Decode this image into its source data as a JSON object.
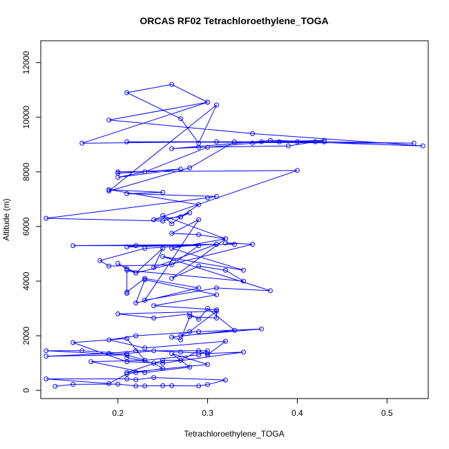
{
  "chart_data": {
    "type": "line",
    "title": "ORCAS RF02 Tetrachloroethylene_TOGA",
    "xlabel": "Tetrachloroethylene_TOGA",
    "ylabel": "Altitude (m)",
    "xlim": [
      0.114,
      0.546
    ],
    "ylim": [
      -300,
      12800
    ],
    "xticks": [
      0.2,
      0.3,
      0.4,
      0.5
    ],
    "xtick_labels": [
      "0.2",
      "0.3",
      "0.4",
      "0.5"
    ],
    "yticks": [
      0,
      2000,
      4000,
      6000,
      8000,
      10000,
      12000
    ],
    "ytick_labels": [
      "0",
      "2000",
      "4000",
      "6000",
      "8000",
      "10000",
      "12000"
    ],
    "grid": false,
    "marker": "open-circle",
    "color": "#0000ff",
    "series": [
      {
        "points": [
          [
            0.13,
            150
          ],
          [
            0.15,
            220
          ],
          [
            0.2,
            230
          ],
          [
            0.22,
            160
          ],
          [
            0.23,
            160
          ],
          [
            0.25,
            170
          ],
          [
            0.26,
            170
          ],
          [
            0.29,
            160
          ],
          [
            0.3,
            210
          ],
          [
            0.32,
            380
          ],
          [
            0.24,
            470
          ],
          [
            0.22,
            390
          ],
          [
            0.21,
            420
          ],
          [
            0.12,
            420
          ],
          [
            0.19,
            250
          ],
          [
            0.21,
            600
          ],
          [
            0.22,
            650
          ],
          [
            0.25,
            800
          ],
          [
            0.24,
            1000
          ],
          [
            0.21,
            1200
          ],
          [
            0.21,
            1300
          ],
          [
            0.12,
            1250
          ],
          [
            0.19,
            1350
          ],
          [
            0.22,
            1450
          ],
          [
            0.3,
            1450
          ],
          [
            0.29,
            1300
          ],
          [
            0.23,
            1100
          ],
          [
            0.21,
            1300
          ],
          [
            0.12,
            1450
          ],
          [
            0.16,
            1450
          ],
          [
            0.21,
            1350
          ],
          [
            0.24,
            1450
          ],
          [
            0.27,
            1400
          ],
          [
            0.3,
            1350
          ],
          [
            0.34,
            1400
          ],
          [
            0.25,
            1000
          ],
          [
            0.21,
            1050
          ],
          [
            0.15,
            1750
          ],
          [
            0.21,
            1900
          ],
          [
            0.23,
            1100
          ],
          [
            0.17,
            1050
          ],
          [
            0.23,
            650
          ],
          [
            0.28,
            850
          ],
          [
            0.26,
            1350
          ],
          [
            0.3,
            950
          ],
          [
            0.21,
            650
          ],
          [
            0.25,
            1100
          ],
          [
            0.27,
            1100
          ],
          [
            0.29,
            1450
          ],
          [
            0.3,
            1300
          ],
          [
            0.32,
            1800
          ],
          [
            0.23,
            1550
          ],
          [
            0.19,
            1850
          ],
          [
            0.22,
            2000
          ],
          [
            0.29,
            2150
          ],
          [
            0.36,
            2250
          ],
          [
            0.27,
            2000
          ],
          [
            0.28,
            2150
          ],
          [
            0.31,
            2900
          ],
          [
            0.2,
            2800
          ],
          [
            0.24,
            2650
          ],
          [
            0.28,
            2800
          ],
          [
            0.29,
            2600
          ],
          [
            0.3,
            3000
          ],
          [
            0.33,
            2200
          ],
          [
            0.26,
            1950
          ],
          [
            0.27,
            1850
          ],
          [
            0.28,
            2700
          ],
          [
            0.31,
            2650
          ],
          [
            0.31,
            2950
          ],
          [
            0.24,
            3100
          ],
          [
            0.31,
            3500
          ],
          [
            0.23,
            4050
          ],
          [
            0.22,
            3200
          ],
          [
            0.29,
            3750
          ],
          [
            0.23,
            4100
          ],
          [
            0.21,
            3600
          ],
          [
            0.21,
            3550
          ],
          [
            0.21,
            4450
          ],
          [
            0.2,
            4650
          ],
          [
            0.22,
            4300
          ],
          [
            0.25,
            5200
          ],
          [
            0.24,
            4500
          ],
          [
            0.31,
            5350
          ],
          [
            0.21,
            5250
          ],
          [
            0.22,
            5300
          ],
          [
            0.31,
            5350
          ],
          [
            0.23,
            5200
          ],
          [
            0.18,
            4750
          ],
          [
            0.19,
            4550
          ],
          [
            0.26,
            4600
          ],
          [
            0.29,
            5300
          ],
          [
            0.15,
            5300
          ],
          [
            0.33,
            5350
          ],
          [
            0.32,
            5400
          ],
          [
            0.35,
            5350
          ],
          [
            0.22,
            4300
          ],
          [
            0.21,
            4400
          ],
          [
            0.34,
            4000
          ],
          [
            0.32,
            4400
          ],
          [
            0.29,
            4550
          ],
          [
            0.26,
            4100
          ],
          [
            0.32,
            5550
          ],
          [
            0.26,
            5200
          ],
          [
            0.34,
            4400
          ],
          [
            0.25,
            4900
          ],
          [
            0.37,
            3650
          ],
          [
            0.31,
            3750
          ],
          [
            0.23,
            3300
          ],
          [
            0.29,
            6250
          ],
          [
            0.26,
            5750
          ],
          [
            0.29,
            5700
          ],
          [
            0.32,
            5550
          ],
          [
            0.25,
            6400
          ],
          [
            0.26,
            6100
          ],
          [
            0.27,
            6350
          ],
          [
            0.28,
            6500
          ],
          [
            0.25,
            6200
          ],
          [
            0.12,
            6300
          ],
          [
            0.3,
            7050
          ],
          [
            0.31,
            7100
          ],
          [
            0.21,
            7200
          ],
          [
            0.25,
            7250
          ],
          [
            0.19,
            7350
          ],
          [
            0.29,
            6800
          ],
          [
            0.27,
            6350
          ],
          [
            0.24,
            6250
          ],
          [
            0.4,
            8050
          ],
          [
            0.2,
            8000
          ],
          [
            0.2,
            7950
          ],
          [
            0.27,
            8100
          ],
          [
            0.2,
            7800
          ],
          [
            0.23,
            8000
          ],
          [
            0.3,
            8900
          ],
          [
            0.35,
            9050
          ],
          [
            0.38,
            9100
          ],
          [
            0.42,
            9100
          ],
          [
            0.36,
            9100
          ],
          [
            0.43,
            9150
          ],
          [
            0.39,
            8950
          ],
          [
            0.29,
            8900
          ],
          [
            0.26,
            8850
          ],
          [
            0.37,
            9150
          ],
          [
            0.43,
            9100
          ],
          [
            0.53,
            9050
          ],
          [
            0.21,
            9100
          ],
          [
            0.4,
            9100
          ],
          [
            0.54,
            8950
          ],
          [
            0.35,
            9400
          ],
          [
            0.19,
            9900
          ],
          [
            0.3,
            10550
          ],
          [
            0.16,
            9050
          ],
          [
            0.31,
            9100
          ],
          [
            0.33,
            9100
          ],
          [
            0.28,
            8150
          ],
          [
            0.19,
            7300
          ],
          [
            0.31,
            10450
          ],
          [
            0.29,
            9050
          ],
          [
            0.27,
            9950
          ],
          [
            0.21,
            10900
          ],
          [
            0.26,
            11200
          ],
          [
            0.3,
            10550
          ]
        ]
      }
    ]
  }
}
